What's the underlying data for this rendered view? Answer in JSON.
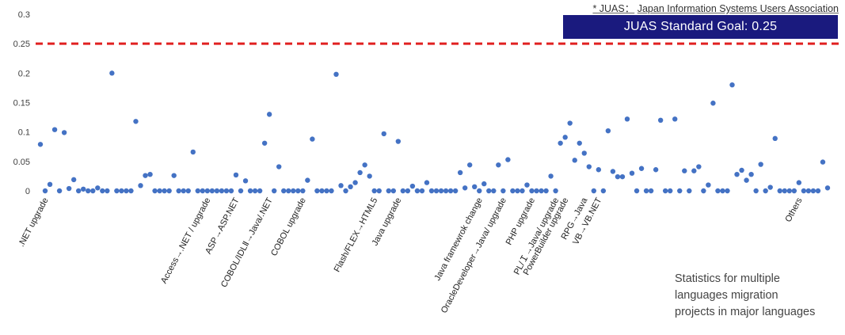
{
  "note": {
    "prefix": "* JUAS：",
    "text": "Japan Information Systems Users Association"
  },
  "goal_badge": {
    "text": "JUAS Standard Goal: 0.25",
    "bg_color": "#1a1a7e"
  },
  "stats_note": [
    "Statistics for multiple",
    "languages migration",
    "projects in major languages"
  ],
  "chart_data": {
    "type": "scatter",
    "ylim": [
      0,
      0.3
    ],
    "yticks": [
      "0",
      "0.05",
      "0.1",
      "0.15",
      "0.2",
      "0.25",
      "0.3"
    ],
    "grid": false,
    "goal_line": {
      "value": 0.25,
      "color": "#e02020",
      "style": "dashed"
    },
    "point_color": "#4472c4",
    "categories": [
      {
        "label": ".NET upgrade",
        "index": 1
      },
      {
        "label": "Access→.NET / upgrade",
        "index": 35
      },
      {
        "label": "ASP→ASP.NET",
        "index": 41
      },
      {
        "label": "COBOL/IDLⅡ→Java/.NET",
        "index": 48
      },
      {
        "label": "COBOL upgrade",
        "index": 55
      },
      {
        "label": "Flash/FLEX→HTML5",
        "index": 70
      },
      {
        "label": "Java upgrade",
        "index": 75
      },
      {
        "label": "Java framewrok change",
        "index": 92
      },
      {
        "label": "OracleDeveloper→Java/ upgrade",
        "index": 97
      },
      {
        "label": "PHP upgrade",
        "index": 103
      },
      {
        "label": "PL/Ｉ→Java/ upgrade",
        "index": 108
      },
      {
        "label": "PowerBuilder upgrade",
        "index": 110
      },
      {
        "label": "RPG→Java",
        "index": 114
      },
      {
        "label": "VB→VB.NET",
        "index": 117
      },
      {
        "label": "Others",
        "index": 159
      }
    ],
    "values": [
      0.079,
      0.0,
      0.011,
      0.104,
      0.0,
      0.099,
      0.004,
      0.019,
      0.0,
      0.003,
      0.0,
      0.0,
      0.005,
      0.0,
      0.0,
      0.2,
      0.0,
      0.0,
      0.0,
      0.0,
      0.118,
      0.009,
      0.026,
      0.028,
      0.0,
      0.0,
      0.0,
      0.0,
      0.026,
      0.0,
      0.0,
      0.0,
      0.066,
      0.0,
      0.0,
      0.0,
      0.0,
      0.0,
      0.0,
      0.0,
      0.0,
      0.027,
      0.0,
      0.017,
      0.0,
      0.0,
      0.0,
      0.081,
      0.13,
      0.0,
      0.041,
      0.0,
      0.0,
      0.0,
      0.0,
      0.0,
      0.018,
      0.088,
      0.0,
      0.0,
      0.0,
      0.0,
      0.198,
      0.009,
      0.0,
      0.007,
      0.014,
      0.031,
      0.044,
      0.025,
      0.0,
      0.0,
      0.097,
      0.0,
      0.0,
      0.084,
      0.0,
      0.0,
      0.008,
      0.0,
      0.0,
      0.014,
      0.0,
      0.0,
      0.0,
      0.0,
      0.0,
      0.0,
      0.031,
      0.005,
      0.044,
      0.007,
      0.0,
      0.012,
      0.0,
      0.0,
      0.044,
      0.0,
      0.053,
      0.0,
      0.0,
      0.0,
      0.01,
      0.0,
      0.0,
      0.0,
      0.0,
      0.025,
      0.0,
      0.081,
      0.091,
      0.115,
      0.052,
      0.081,
      0.064,
      0.041,
      0.0,
      0.036,
      0.0,
      0.102,
      0.033,
      0.024,
      0.024,
      0.122,
      0.03,
      0.0,
      0.038,
      0.0,
      0.0,
      0.036,
      0.12,
      0.0,
      0.0,
      0.122,
      0.0,
      0.034,
      0.0,
      0.034,
      0.041,
      0.0,
      0.01,
      0.149,
      0.0,
      0.0,
      0.0,
      0.18,
      0.028,
      0.035,
      0.018,
      0.028,
      0.0,
      0.045,
      0.0,
      0.006,
      0.089,
      0.0,
      0.0,
      0.0,
      0.0,
      0.014,
      0.0,
      0.0,
      0.0,
      0.0,
      0.049,
      0.005
    ]
  }
}
